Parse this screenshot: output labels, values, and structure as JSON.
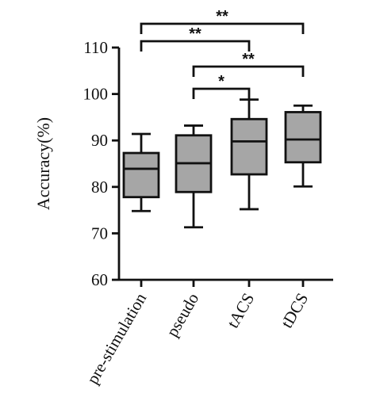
{
  "chart_data": {
    "type": "box",
    "ylabel": "Accuracy(%)",
    "ylim": [
      60,
      110
    ],
    "yticks": [
      60,
      70,
      80,
      90,
      100,
      110
    ],
    "categories": [
      "pre-stimulation",
      "pseudo",
      "tACS",
      "tDCS"
    ],
    "boxes": [
      {
        "category": "pre-stimulation",
        "min": 74.8,
        "q1": 77.8,
        "median": 83.9,
        "q3": 87.3,
        "max": 91.4
      },
      {
        "category": "pseudo",
        "min": 71.3,
        "q1": 78.9,
        "median": 85.1,
        "q3": 91.1,
        "max": 93.2
      },
      {
        "category": "tACS",
        "min": 75.2,
        "q1": 82.7,
        "median": 89.8,
        "q3": 94.6,
        "max": 98.8
      },
      {
        "category": "tDCS",
        "min": 80.1,
        "q1": 85.3,
        "median": 90.2,
        "q3": 96.1,
        "max": 97.5
      }
    ],
    "significance": [
      {
        "from": "pre-stimulation",
        "to": "tDCS",
        "label": "**"
      },
      {
        "from": "pre-stimulation",
        "to": "tACS",
        "label": "**"
      },
      {
        "from": "pseudo",
        "to": "tDCS",
        "label": "**"
      },
      {
        "from": "pseudo",
        "to": "tACS",
        "label": "*"
      }
    ],
    "box_fill": "#a6a6a6",
    "line_color": "#111111",
    "grid": false
  }
}
